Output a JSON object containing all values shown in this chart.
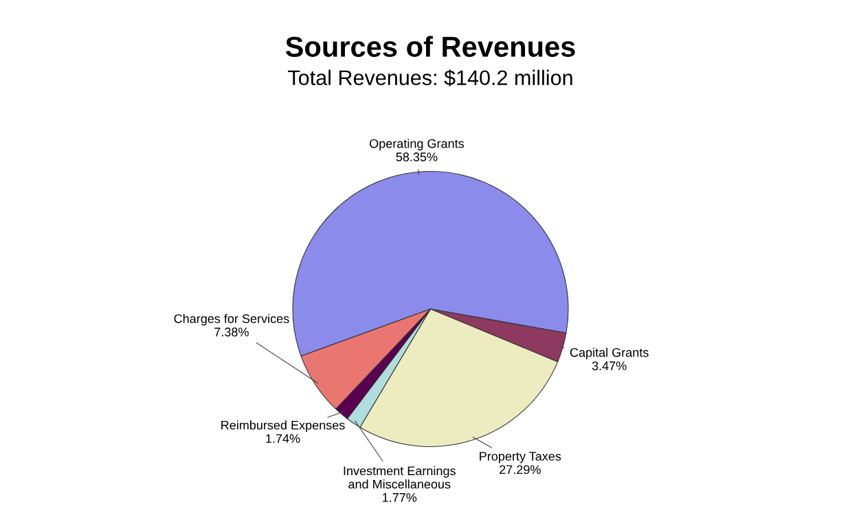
{
  "chart_data": {
    "type": "pie",
    "title": "Sources of Revenues",
    "subtitle": "Total Revenues: $140.2 million",
    "categories": [
      "Operating Grants",
      "Capital Grants",
      "Property Taxes",
      "Investment Earnings\nand Miscellaneous",
      "Reimbursed Expenses",
      "Charges for Services"
    ],
    "values": [
      58.35,
      3.47,
      27.29,
      1.77,
      1.74,
      7.38
    ],
    "value_labels": [
      "58.35%",
      "3.47%",
      "27.29%",
      "1.77%",
      "1.74%",
      "7.38%"
    ],
    "colors": [
      "#8b8beb",
      "#8e3a60",
      "#ececc0",
      "#b0dede",
      "#5a0050",
      "#ea7672"
    ],
    "legend": false
  }
}
